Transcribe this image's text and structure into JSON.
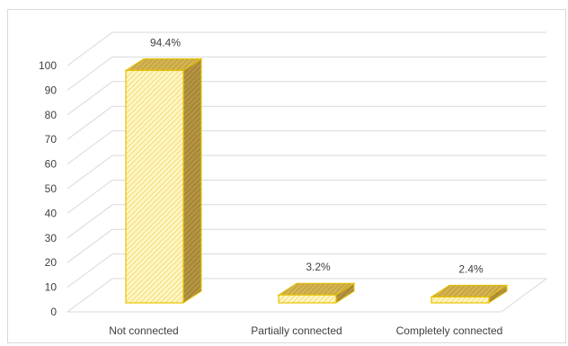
{
  "chart_data": {
    "type": "bar",
    "title": "",
    "xlabel": "",
    "ylabel": "",
    "categories": [
      "Not connected",
      "Partially connected",
      "Completely connected"
    ],
    "values": [
      94.4,
      3.2,
      2.4
    ],
    "data_labels": [
      "94.4%",
      "3.2%",
      "2.4%"
    ],
    "ylim": [
      0,
      100
    ],
    "yticks": [
      0,
      10,
      20,
      30,
      40,
      50,
      60,
      70,
      80,
      90,
      100
    ],
    "grid": true,
    "legend": "none",
    "style": "3d-column",
    "colors": {
      "front": "#fff0a3",
      "top": "#d9b84a",
      "side": "#b8983a",
      "edge": "#e8c200",
      "grid": "#d9d9d9",
      "text": "#404040"
    }
  }
}
